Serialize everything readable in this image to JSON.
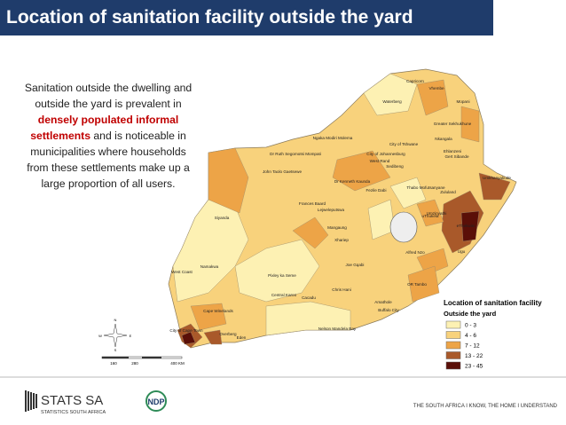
{
  "header": {
    "title": "Location of sanitation facility outside the yard"
  },
  "body": {
    "lines": [
      [
        {
          "text": "Sanitation outside the dwelling and",
          "color": "#222222"
        }
      ],
      [
        {
          "text": "outside the yard is prevalent in",
          "color": "#222222"
        }
      ],
      [
        {
          "text": "densely populated informal",
          "color": "#c00000"
        }
      ],
      [
        {
          "text": "settlements",
          "color": "#c00000"
        },
        {
          "text": " and is noticeable in",
          "color": "#222222"
        }
      ],
      [
        {
          "text": "municipalities where households",
          "color": "#222222"
        }
      ],
      [
        {
          "text": "from these settlements make up a",
          "color": "#222222"
        }
      ],
      [
        {
          "text": "large proportion of all users.",
          "color": "#222222"
        }
      ]
    ]
  },
  "map": {
    "labels": [
      "Capricorn",
      "Vhembe",
      "Waterberg",
      "Mopani",
      "Greater Sekhukhune",
      "Ehlanzeni",
      "Nkangala",
      "Ngaka Modiri Molema",
      "City of Tshwane",
      "Dr Ruth Segomotsi Mompati",
      "City of Johannesburg",
      "West Rand",
      "Sedibeng",
      "Gert Sibande",
      "John Taolo Gaetsewe",
      "Dr Kenneth Kaunda",
      "Fezile Dabi",
      "Thabo Mofutsanyane",
      "Umkhanyakude",
      "Zululand",
      "Frances Baard",
      "Lejweleputswa",
      "Siyanda",
      "Mangaung",
      "Umzinyathi",
      "uThukela",
      "eThekwini",
      "Xhariep",
      "Alfred Nzo",
      "Ugu",
      "Joe Gqabi",
      "Namakwa",
      "Pixley ka Seme",
      "West Coast",
      "OR Tambo",
      "Chris Hani",
      "Central Karoo",
      "Cacadu",
      "Amathole",
      "Buffalo City",
      "Cape Winelands",
      "City of Cape Town",
      "Overberg",
      "Eden",
      "Nelson Mandela Bay"
    ],
    "compass": [
      "N",
      "E",
      "S",
      "W"
    ],
    "scale": [
      "160",
      "280",
      "400 KM"
    ],
    "legend": {
      "title": "Location of sanitation facility",
      "subtitle": "Outside the yard",
      "items": [
        {
          "label": "0 - 3",
          "color": "#fdf1b3"
        },
        {
          "label": "4 - 6",
          "color": "#f8d27c"
        },
        {
          "label": "7 - 12",
          "color": "#eda447"
        },
        {
          "label": "13 - 22",
          "color": "#a9592a"
        },
        {
          "label": "23 - 45",
          "color": "#5a0f08"
        }
      ]
    }
  },
  "footer": {
    "brand": "STATS SA",
    "brand_sub": "STATISTICS SOUTH AFRICA",
    "ndp": "NDP",
    "tagline": "THE SOUTH AFRICA I KNOW, THE HOME I UNDERSTAND"
  }
}
